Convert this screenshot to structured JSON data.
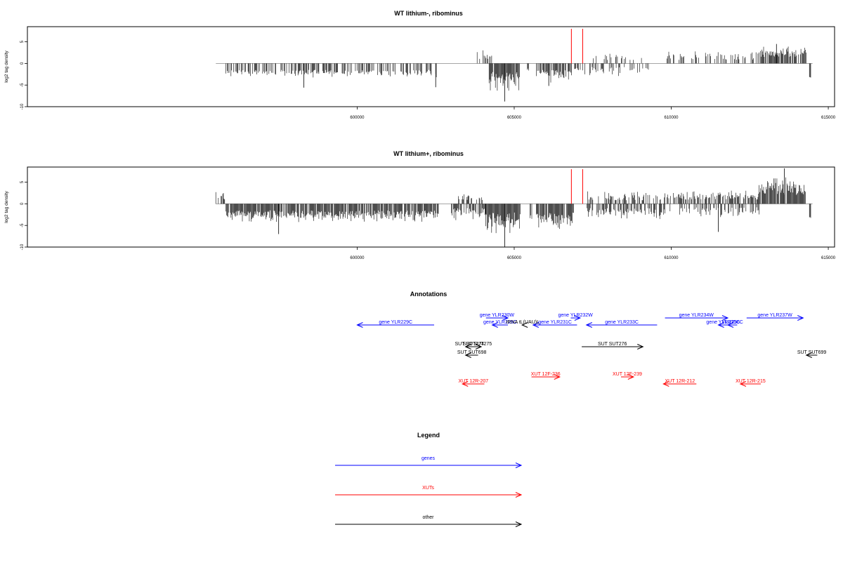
{
  "chart_data": [
    {
      "type": "bar",
      "title": "WT lithium-, ribominus",
      "ylabel": "log2 tag density",
      "xlim": [
        589500,
        615200
      ],
      "ylim": [
        -10,
        8.5
      ],
      "xticks": [
        600000,
        605000,
        610000,
        615000
      ],
      "xtick_labels": [
        "600000",
        "605000",
        "610000",
        "615000"
      ],
      "yticks": [
        -10,
        -5,
        0,
        5
      ],
      "ytick_labels": [
        "-10",
        "-5",
        "0",
        "5"
      ],
      "baseline": {
        "x": [
          595500,
          614500
        ],
        "y": 0
      },
      "marker_lines": {
        "color": "#ff0000",
        "x": [
          606820,
          607180
        ],
        "y": [
          0,
          8
        ]
      },
      "signal_regions": [
        {
          "start": 595800,
          "end": 599300,
          "dir": -1,
          "density": 0.55,
          "amp": [
            1.5,
            3.3
          ],
          "spike": [
            598300,
            -5.6
          ]
        },
        {
          "start": 599300,
          "end": 602600,
          "dir": -1,
          "density": 0.45,
          "amp": [
            1.5,
            3.3
          ],
          "spike": [
            602500,
            -5.5
          ]
        },
        {
          "start": 603800,
          "end": 604300,
          "dir": 1,
          "density": 0.5,
          "amp": [
            1,
            3.5
          ]
        },
        {
          "start": 604200,
          "end": 605200,
          "dir": -1,
          "density": 0.95,
          "amp": [
            2,
            7
          ],
          "spike": [
            604700,
            -8.8
          ]
        },
        {
          "start": 605400,
          "end": 605500,
          "dir": -1,
          "density": 0.5,
          "amp": [
            1,
            2.5
          ]
        },
        {
          "start": 605700,
          "end": 606800,
          "dir": -1,
          "density": 0.8,
          "amp": [
            1.5,
            4.5
          ],
          "spike": [
            606100,
            -5.2
          ]
        },
        {
          "start": 606800,
          "end": 607300,
          "dir": -1,
          "density": 0.4,
          "amp": [
            1,
            3
          ]
        },
        {
          "start": 607400,
          "end": 609400,
          "dir": -1,
          "density": 0.3,
          "amp": [
            0.8,
            3.5
          ]
        },
        {
          "start": 607400,
          "end": 609400,
          "dir": 1,
          "density": 0.15,
          "amp": [
            0.8,
            3
          ]
        },
        {
          "start": 609800,
          "end": 612700,
          "dir": 1,
          "density": 0.3,
          "amp": [
            0.8,
            3.2
          ]
        },
        {
          "start": 612700,
          "end": 614300,
          "dir": 1,
          "density": 0.75,
          "amp": [
            1.5,
            4.2
          ],
          "spike": [
            613350,
            4.5
          ]
        },
        {
          "start": 614400,
          "end": 614450,
          "dir": -1,
          "density": 1,
          "amp": [
            3,
            3.3
          ]
        }
      ]
    },
    {
      "type": "bar",
      "title": "WT lithium+, ribominus",
      "ylabel": "log2 tag density",
      "xlim": [
        589500,
        615200
      ],
      "ylim": [
        -10,
        8.5
      ],
      "xticks": [
        600000,
        605000,
        610000,
        615000
      ],
      "xtick_labels": [
        "600000",
        "605000",
        "610000",
        "615000"
      ],
      "yticks": [
        -10,
        -5,
        0,
        5
      ],
      "ytick_labels": [
        "-10",
        "-5",
        "0",
        "5"
      ],
      "baseline": {
        "x": [
          595500,
          614500
        ],
        "y": 0
      },
      "marker_lines": {
        "color": "#ff0000",
        "x": [
          606820,
          607180
        ],
        "y": [
          0,
          8
        ]
      },
      "signal_regions": [
        {
          "start": 595500,
          "end": 595800,
          "dir": 1,
          "density": 0.5,
          "amp": [
            1,
            3.5
          ]
        },
        {
          "start": 595800,
          "end": 602600,
          "dir": -1,
          "density": 0.85,
          "amp": [
            1.5,
            4.5
          ],
          "spike": [
            597500,
            -7
          ]
        },
        {
          "start": 603200,
          "end": 604000,
          "dir": 1,
          "density": 0.4,
          "amp": [
            0.8,
            2.5
          ]
        },
        {
          "start": 603000,
          "end": 604100,
          "dir": -1,
          "density": 0.6,
          "amp": [
            1,
            4
          ]
        },
        {
          "start": 604100,
          "end": 605200,
          "dir": -1,
          "density": 1,
          "amp": [
            2,
            7.5
          ],
          "spike": [
            604700,
            -10
          ]
        },
        {
          "start": 605500,
          "end": 605600,
          "dir": -1,
          "density": 0.6,
          "amp": [
            2,
            6.5
          ]
        },
        {
          "start": 605700,
          "end": 606900,
          "dir": -1,
          "density": 0.95,
          "amp": [
            2,
            6
          ]
        },
        {
          "start": 607300,
          "end": 609800,
          "dir": -1,
          "density": 0.55,
          "amp": [
            1,
            4
          ]
        },
        {
          "start": 607300,
          "end": 609800,
          "dir": 1,
          "density": 0.4,
          "amp": [
            0.8,
            3
          ]
        },
        {
          "start": 609800,
          "end": 612800,
          "dir": 1,
          "density": 0.6,
          "amp": [
            1,
            3.5
          ]
        },
        {
          "start": 609800,
          "end": 612800,
          "dir": -1,
          "density": 0.35,
          "amp": [
            0.8,
            3.5
          ],
          "spike": [
            611500,
            -6.5
          ]
        },
        {
          "start": 612800,
          "end": 614300,
          "dir": 1,
          "density": 0.95,
          "amp": [
            2,
            6.5
          ],
          "spike": [
            613600,
            8.2
          ]
        },
        {
          "start": 614400,
          "end": 614450,
          "dir": -1,
          "density": 1,
          "amp": [
            3,
            3.5
          ]
        }
      ]
    }
  ],
  "annotations": {
    "title": "Annotations",
    "tracks": [
      {
        "label": "gene YLR229C",
        "start": 600000,
        "end": 602450,
        "dir": -1,
        "color": "#0000ff",
        "row": 2
      },
      {
        "label": "gene YLR230W",
        "start": 604100,
        "end": 604800,
        "dir": 1,
        "color": "#0000ff",
        "row": 0
      },
      {
        "label": "gene YLR229C",
        "start": 604300,
        "end": 604800,
        "dir": -1,
        "color": "#0000ff",
        "row": 2
      },
      {
        "label": "gene YLR231C",
        "start": 605600,
        "end": 607000,
        "dir": -1,
        "color": "#0000ff",
        "row": 2
      },
      {
        "label": "gene YLR232W",
        "start": 606800,
        "end": 607100,
        "dir": 1,
        "color": "#0000ff",
        "row": 0
      },
      {
        "label": "gene YLR233C",
        "start": 607300,
        "end": 609550,
        "dir": -1,
        "color": "#0000ff",
        "row": 2
      },
      {
        "label": "gene YLR234W",
        "start": 609800,
        "end": 611800,
        "dir": 1,
        "color": "#0000ff",
        "row": 0
      },
      {
        "label": "gene YLR235C",
        "start": 611500,
        "end": 611800,
        "dir": -1,
        "color": "#0000ff",
        "row": 2
      },
      {
        "label": "YLR236C",
        "start": 611800,
        "end": 612100,
        "dir": -1,
        "color": "#0000ff",
        "row": 2
      },
      {
        "label": "gene YLR237W",
        "start": 612400,
        "end": 614200,
        "dir": 1,
        "color": "#0000ff",
        "row": 0
      },
      {
        "label": "SUT SUT274",
        "start": 603450,
        "end": 603700,
        "dir": -1,
        "color": "#000000",
        "row": 3
      },
      {
        "label": "SUT SUT275",
        "start": 603700,
        "end": 603950,
        "dir": 1,
        "color": "#000000",
        "row": 3
      },
      {
        "label": "SUT SUT698",
        "start": 603450,
        "end": 603850,
        "dir": -1,
        "color": "#000000",
        "row": 4
      },
      {
        "label": "tRNA tL(UAU)L",
        "start": 605250,
        "end": 605300,
        "dir": -1,
        "color": "#000000",
        "row": 2
      },
      {
        "label": "SUT SUT276",
        "start": 607150,
        "end": 609100,
        "dir": 1,
        "color": "#000000",
        "row": 3
      },
      {
        "label": "SUT SUT699",
        "start": 614300,
        "end": 614650,
        "dir": -1,
        "color": "#000000",
        "row": 4
      },
      {
        "label": "XUT 12R-207",
        "start": 603350,
        "end": 604050,
        "dir": -1,
        "color": "#ff0000",
        "row": 6
      },
      {
        "label": "XUT 12F-236",
        "start": 605550,
        "end": 606450,
        "dir": 1,
        "color": "#ff0000",
        "row": 5
      },
      {
        "label": "XUT 12F-239",
        "start": 608400,
        "end": 608800,
        "dir": 1,
        "color": "#ff0000",
        "row": 5
      },
      {
        "label": "XUT 12R-212",
        "start": 609750,
        "end": 610800,
        "dir": -1,
        "color": "#ff0000",
        "row": 6
      },
      {
        "label": "XUT 12R-215",
        "start": 612200,
        "end": 612850,
        "dir": -1,
        "color": "#ff0000",
        "row": 6
      }
    ]
  },
  "legend": {
    "title": "Legend",
    "items": [
      {
        "label": "genes",
        "color": "#0000ff"
      },
      {
        "label": "XUTs",
        "color": "#ff0000"
      },
      {
        "label": "other",
        "color": "#000000"
      }
    ]
  }
}
